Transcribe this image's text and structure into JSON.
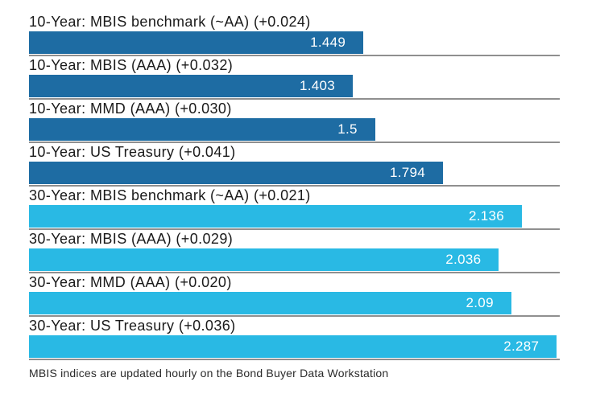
{
  "chart_data": {
    "type": "bar",
    "orientation": "horizontal",
    "xlim": [
      0,
      2.3
    ],
    "grid": false,
    "value_label_position": "inside-end",
    "rows": [
      {
        "label": "10-Year: MBIS benchmark (~AA) (+0.024)",
        "value": 1.449,
        "display_value": "1.449",
        "group": "10-year"
      },
      {
        "label": "10-Year: MBIS (AAA) (+0.032)",
        "value": 1.403,
        "display_value": "1.403",
        "group": "10-year"
      },
      {
        "label": "10-Year: MMD (AAA) (+0.030)",
        "value": 1.5,
        "display_value": "1.5",
        "group": "10-year"
      },
      {
        "label": "10-Year: US Treasury (+0.041)",
        "value": 1.794,
        "display_value": "1.794",
        "group": "10-year"
      },
      {
        "label": "30-Year: MBIS benchmark (~AA) (+0.021)",
        "value": 2.136,
        "display_value": "2.136",
        "group": "30-year"
      },
      {
        "label": "30-Year: MBIS (AAA) (+0.029)",
        "value": 2.036,
        "display_value": "2.036",
        "group": "30-year"
      },
      {
        "label": "30-Year: MMD (AAA) (+0.020)",
        "value": 2.09,
        "display_value": "2.09",
        "group": "30-year"
      },
      {
        "label": "30-Year: US Treasury (+0.036)",
        "value": 2.287,
        "display_value": "2.287",
        "group": "30-year"
      }
    ]
  },
  "colors": {
    "bar_10_year": "#1e6ca3",
    "bar_30_year": "#29b9e4",
    "separator": "#8f8f8f",
    "label_text": "#1a1a1a",
    "value_text": "#ffffff"
  },
  "footer": {
    "note": "MBIS indices are updated hourly on the Bond Buyer Data Workstation"
  }
}
